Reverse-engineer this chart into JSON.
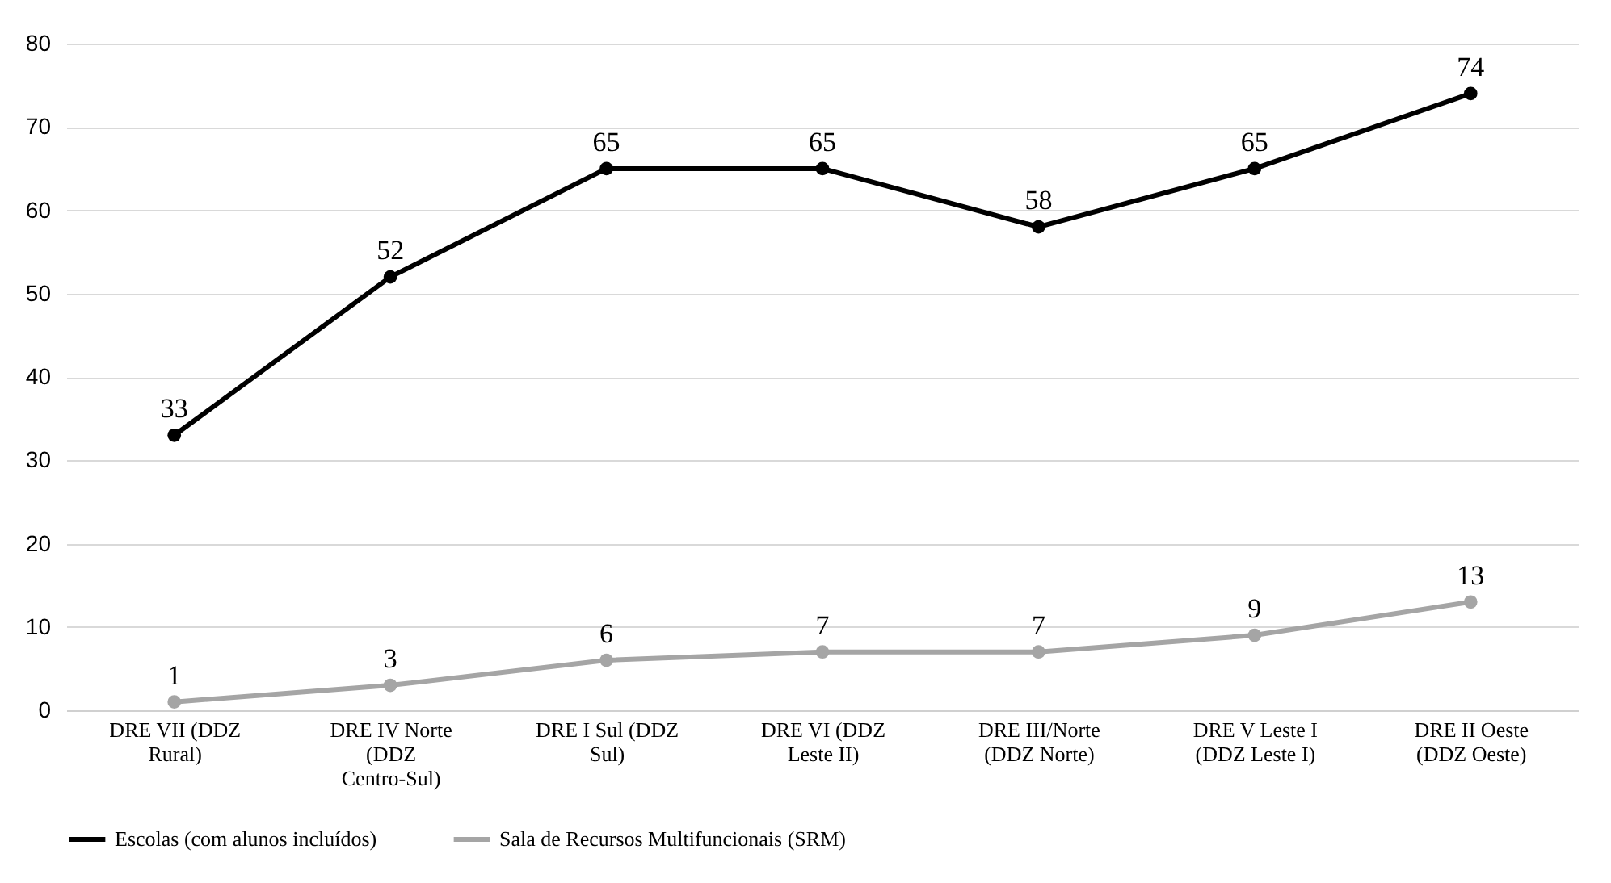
{
  "chart_data": {
    "type": "line",
    "categories": [
      "DRE VII (DDZ Rural)",
      "DRE IV Norte (DDZ Centro-Sul)",
      "DRE I Sul (DDZ Sul)",
      "DRE VI (DDZ Leste II)",
      "DRE III/Norte (DDZ Norte)",
      "DRE V Leste I (DDZ Leste I)",
      "DRE II Oeste (DDZ Oeste)"
    ],
    "series": [
      {
        "name": "Escolas (com alunos incluídos)",
        "color": "#000000",
        "values": [
          33,
          52,
          65,
          65,
          58,
          65,
          74
        ]
      },
      {
        "name": "Sala de Recursos Multifuncionais (SRM)",
        "color": "#a5a5a5",
        "values": [
          1,
          3,
          6,
          7,
          7,
          9,
          13
        ]
      }
    ],
    "ylim": [
      0,
      80
    ],
    "yticks": [
      0,
      10,
      20,
      30,
      40,
      50,
      60,
      70,
      80
    ],
    "grid": "y",
    "legend": "bottom",
    "marker": "circle",
    "line_style": "solid",
    "data_labels": true
  }
}
